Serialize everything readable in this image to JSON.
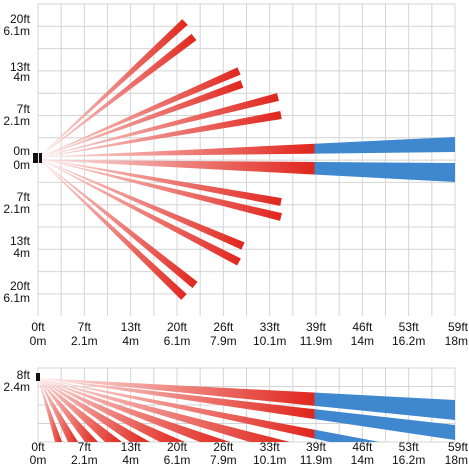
{
  "top_view": {
    "y_labels": [
      [
        "20ft",
        "6.1m"
      ],
      [
        "13ft",
        "4m"
      ],
      [
        "7ft",
        "2.1m"
      ],
      [
        "0m",
        "0m"
      ],
      [
        "7ft",
        "2.1m"
      ],
      [
        "13ft",
        "4m"
      ],
      [
        "20ft",
        "6.1m"
      ]
    ],
    "x_labels": [
      [
        "0ft",
        "0m"
      ],
      [
        "7ft",
        "2.1m"
      ],
      [
        "13ft",
        "4m"
      ],
      [
        "20ft",
        "6.1m"
      ],
      [
        "26ft",
        "7.9m"
      ],
      [
        "33ft",
        "10.1m"
      ],
      [
        "39ft",
        "11.9m"
      ],
      [
        "46ft",
        "14m"
      ],
      [
        "53ft",
        "16.2m"
      ],
      [
        "59ft",
        "18m"
      ]
    ]
  },
  "side_view": {
    "y_label": [
      "8ft",
      "2.4m"
    ],
    "x_labels": [
      [
        "0ft",
        "0m"
      ],
      [
        "7ft",
        "2.1m"
      ],
      [
        "13ft",
        "4m"
      ],
      [
        "20ft",
        "6.1m"
      ],
      [
        "26ft",
        "7.9m"
      ],
      [
        "33ft",
        "10.1m"
      ],
      [
        "39ft",
        "11.9m"
      ],
      [
        "46ft",
        "14m"
      ],
      [
        "53ft",
        "16.2m"
      ],
      [
        "59ft",
        "18m"
      ]
    ]
  }
}
